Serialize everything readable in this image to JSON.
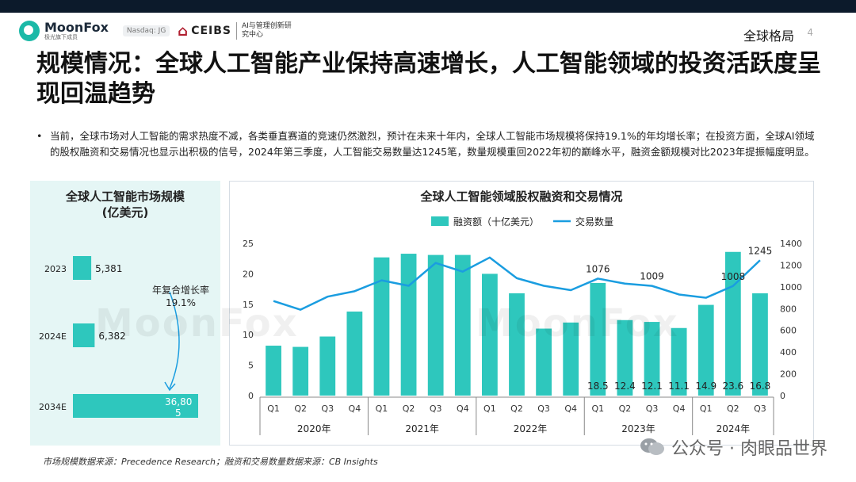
{
  "header": {
    "brand": "MoonFox",
    "brand_sub": "极光旗下成员",
    "nasdaq": "Nasdaq: JG",
    "partner": "CEIBS",
    "partner_sub": "AI与管理创新研究中心",
    "section": "全球格局",
    "page": "4"
  },
  "title": "规模情况：全球人工智能产业保持高速增长，人工智能领域的投资活跃度呈现回温趋势",
  "bullet": "当前，全球市场对人工智能的需求热度不减，各类垂直赛道的竞速仍然激烈，预计在未来十年内，全球人工智能市场规模将保持19.1%的年均增长率；在投资方面，全球AI领域的股权融资和交易情况也显示出积极的信号，2024年第三季度，人工智能交易数量达1245笔，数量规模重回2022年初的巅峰水平，融资金额规模对比2023年提振幅度明显。",
  "footer": "市场规模数据来源：Precedence Research；融资和交易数量数据来源：CB Insights",
  "watermark": "MoonFox",
  "wechat": "公众号 · 肉眼品世界",
  "colors": {
    "teal": "#2ec7bd",
    "line": "#1a9de0",
    "panel": "#e5f6f5"
  },
  "chart_data": [
    {
      "type": "bar",
      "title": "全球人工智能市场规模",
      "subtitle": "(亿美元)",
      "categories": [
        "2023",
        "2024E",
        "2034E"
      ],
      "values": [
        5381,
        6382,
        36805
      ],
      "value_labels": [
        "5,381",
        "6,382",
        "36,80\n5"
      ],
      "annotation": {
        "label": "年复合增长率",
        "value": "19.1%"
      }
    },
    {
      "type": "bar+line",
      "title": "全球人工智能领域股权融资和交易情况",
      "legend": [
        "融资额（十亿美元）",
        "交易数量"
      ],
      "quarters": [
        "Q1",
        "Q2",
        "Q3",
        "Q4",
        "Q1",
        "Q2",
        "Q3",
        "Q4",
        "Q1",
        "Q2",
        "Q3",
        "Q4",
        "Q1",
        "Q2",
        "Q3",
        "Q4",
        "Q1",
        "Q2",
        "Q3"
      ],
      "years": [
        {
          "label": "2020年",
          "count": 4
        },
        {
          "label": "2021年",
          "count": 4
        },
        {
          "label": "2022年",
          "count": 4
        },
        {
          "label": "2023年",
          "count": 4
        },
        {
          "label": "2024年",
          "count": 3
        }
      ],
      "bar_series": {
        "name": "融资额（十亿美元）",
        "values": [
          8.2,
          8.0,
          9.7,
          13.8,
          22.7,
          23.3,
          23.1,
          23.1,
          20.0,
          16.8,
          11.0,
          12.0,
          18.5,
          12.4,
          12.1,
          11.1,
          14.9,
          23.6,
          16.8
        ],
        "labels": [
          "",
          "",
          "",
          "",
          "",
          "",
          "",
          "",
          "",
          "",
          "",
          "",
          "18.5",
          "12.4",
          "12.1",
          "11.1",
          "14.9",
          "23.6",
          "16.8"
        ]
      },
      "line_series": {
        "name": "交易数量",
        "values": [
          870,
          790,
          910,
          960,
          1060,
          1010,
          1220,
          1140,
          1270,
          1080,
          1010,
          970,
          1076,
          1030,
          1009,
          930,
          900,
          1008,
          1245
        ],
        "labels": [
          "",
          "",
          "",
          "",
          "",
          "",
          "",
          "",
          "",
          "",
          "",
          "",
          "1076",
          "",
          "1009",
          "",
          "",
          "1008",
          "1245"
        ]
      },
      "y_left": {
        "min": 0,
        "max": 25,
        "ticks": [
          0,
          5,
          10,
          15,
          20,
          25
        ]
      },
      "y_right": {
        "min": 0,
        "max": 1400,
        "ticks": [
          0,
          200,
          400,
          600,
          800,
          1000,
          1200,
          1400
        ]
      }
    }
  ]
}
